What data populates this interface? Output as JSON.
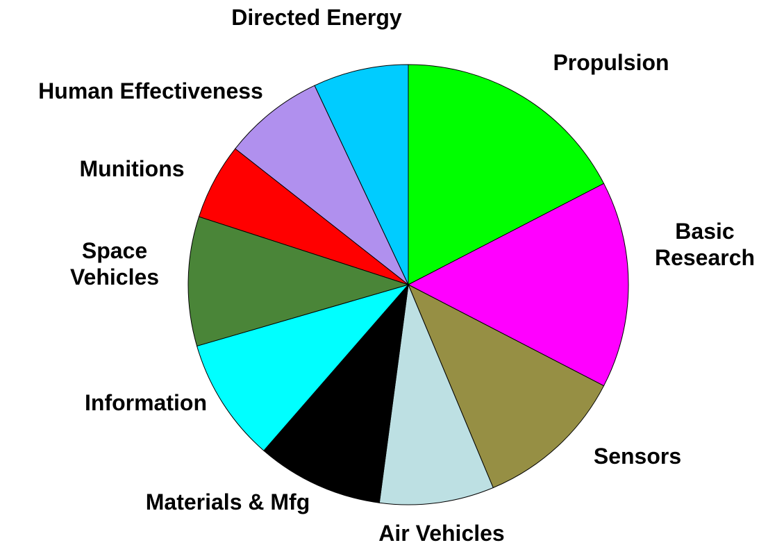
{
  "chart_data": {
    "type": "pie",
    "categories": [
      "Propulsion",
      "Basic Research",
      "Sensors",
      "Air Vehicles",
      "Materials & Mfg",
      "Information",
      "Space Vehicles",
      "Munitions",
      "Human Effectiveness",
      "Directed Energy"
    ],
    "values": [
      17.4,
      15.2,
      11.1,
      8.4,
      9.3,
      9.1,
      9.5,
      5.6,
      7.4,
      7.0
    ],
    "colors": [
      "#00ff00",
      "#ff00ff",
      "#968f44",
      "#bde0e3",
      "#000000",
      "#00ffff",
      "#4a8538",
      "#ff0000",
      "#b090ee",
      "#00ccff"
    ]
  }
}
